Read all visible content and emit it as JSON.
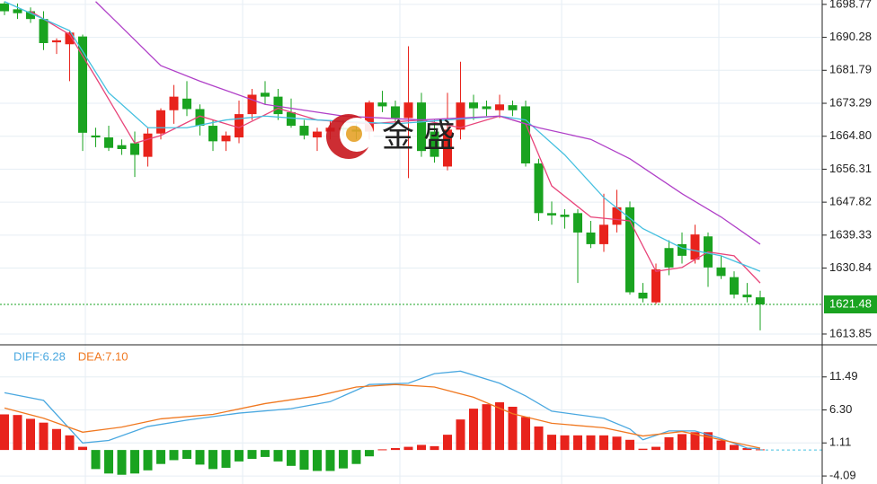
{
  "chart_data": [
    {
      "type": "candlestick",
      "ylim": [
        1611.3,
        1699.9
      ],
      "yticks": [
        1698.77,
        1690.28,
        1681.79,
        1673.29,
        {
          "value": 1664.8,
          "label": "1664.80"
        },
        1656.31,
        1647.82,
        1639.33,
        1630.84,
        1613.85
      ],
      "grid": true,
      "up_color": "#e8231c",
      "down_color": "#1aa320",
      "last_price": 1621.48,
      "last_price_color": "#1aa320",
      "watermark": "金 盛",
      "open": [
        1699,
        1697.5,
        1697,
        1695,
        1689,
        1688.5,
        1690.5,
        1665,
        1664.5,
        1662.5,
        1663,
        1659.5,
        1665.5,
        1671.5,
        1674.5,
        1671.8,
        1667.5,
        1663.5,
        1664.5,
        1670.5,
        1676,
        1675,
        1671,
        1667.5,
        1664.5,
        1666,
        1667,
        1666.5,
        1666,
        1673.5,
        1672.5,
        1669.5,
        1673.5,
        1666,
        1657,
        1666.5,
        1673.5,
        1672.5,
        1671.5,
        1672.8,
        1672.5,
        1657.8,
        1645,
        1644.6,
        1645,
        1640,
        1637,
        1642,
        1646.5,
        1624.5,
        1622,
        1636,
        1637,
        1633,
        1639,
        1631,
        1628.5,
        1624,
        1623.3
      ],
      "high": [
        1699.5,
        1699,
        1698,
        1697,
        1690,
        1692,
        1691,
        1667,
        1667.5,
        1664,
        1666,
        1667,
        1672,
        1678,
        1679,
        1673,
        1669,
        1666,
        1674,
        1677,
        1679,
        1677,
        1674.5,
        1669,
        1667,
        1669,
        1669,
        1668,
        1674,
        1676.5,
        1674,
        1688,
        1676,
        1669,
        1676,
        1684,
        1675.5,
        1674,
        1675.5,
        1674,
        1674,
        1659,
        1648,
        1646,
        1646,
        1643,
        1650,
        1651,
        1648,
        1627,
        1632,
        1638,
        1640,
        1642,
        1640,
        1634,
        1630,
        1627,
        1625
      ],
      "low": [
        1696,
        1695,
        1694,
        1687,
        1686,
        1679,
        1661,
        1662,
        1661,
        1660,
        1654.3,
        1657,
        1664,
        1668,
        1670,
        1665,
        1661,
        1661,
        1663,
        1669,
        1673,
        1669,
        1667,
        1664,
        1661,
        1664,
        1665,
        1664,
        1664,
        1671,
        1668,
        1654,
        1659.5,
        1658,
        1656,
        1664,
        1669,
        1670,
        1669.5,
        1670,
        1657,
        1643,
        1642,
        1641,
        1627,
        1636,
        1635,
        1640,
        1624,
        1622,
        1621.5,
        1629,
        1632,
        1632,
        1626,
        1628,
        1623,
        1622,
        1614.8
      ],
      "close": [
        1697,
        1696.5,
        1695,
        1688.8,
        1689.5,
        1691.5,
        1665.7,
        1664.5,
        1661.8,
        1661.5,
        1660,
        1665.5,
        1671.5,
        1675,
        1671.8,
        1667.5,
        1663.5,
        1665,
        1670.5,
        1675.5,
        1675,
        1670.5,
        1667.5,
        1665,
        1666,
        1667,
        1666.5,
        1666,
        1673.5,
        1672.5,
        1669.5,
        1673.5,
        1661,
        1659.5,
        1666.5,
        1673.5,
        1672,
        1671.8,
        1673,
        1671.5,
        1657.8,
        1645,
        1644.4,
        1644,
        1640,
        1637,
        1642,
        1646.5,
        1624.6,
        1623,
        1630.5,
        1631,
        1634,
        1639.5,
        1631,
        1628.8,
        1624,
        1623.3,
        1621.48
      ],
      "lines": [
        {
          "color": "#e8457a",
          "x": [
            2,
            5,
            7,
            10,
            12,
            15,
            18,
            21,
            24,
            28,
            32,
            35,
            38,
            40,
            42,
            45,
            48,
            50,
            52,
            54,
            56,
            58
          ],
          "values": [
            1697,
            1691,
            1680,
            1663,
            1665,
            1670,
            1667,
            1672,
            1669,
            1668,
            1669,
            1667,
            1670,
            1668,
            1652,
            1644,
            1643,
            1630,
            1631,
            1635,
            1634,
            1627
          ]
        },
        {
          "color": "#45c0e0",
          "x": [
            0,
            5,
            8,
            11,
            14,
            17,
            20,
            24,
            30,
            34,
            38,
            40,
            43,
            46,
            49,
            52,
            55,
            58
          ],
          "values": [
            1699.5,
            1692,
            1676,
            1667,
            1667,
            1669,
            1670,
            1669,
            1668,
            1669,
            1670,
            1669,
            1660,
            1649,
            1641,
            1636,
            1634,
            1630
          ]
        },
        {
          "color": "#b040c8",
          "x": [
            7,
            12,
            15,
            20,
            26,
            32,
            38,
            41,
            45,
            48,
            52,
            55,
            58
          ],
          "values": [
            1699.5,
            1683,
            1679,
            1673,
            1670,
            1669,
            1670,
            1667,
            1664,
            1659,
            1650,
            1644,
            1637
          ]
        }
      ]
    },
    {
      "type": "macd",
      "ylim": [
        -5.35,
        16.4
      ],
      "yticks": [
        11.49,
        {
          "value": 6.3,
          "label": "6.30"
        },
        1.11,
        -4.09
      ],
      "grid": true,
      "up_color": "#e8231c",
      "down_color": "#1aa320",
      "histogram": [
        5.6,
        5.5,
        4.9,
        4.3,
        3.3,
        2.3,
        0.5,
        -3,
        -3.7,
        -3.9,
        -3.7,
        -3.2,
        -2.2,
        -1.6,
        -1.4,
        -2.3,
        -3,
        -2.8,
        -1.8,
        -1.4,
        -1.1,
        -1.8,
        -2.5,
        -3.1,
        -3.3,
        -3.3,
        -2.9,
        -2.2,
        -1,
        0.1,
        0.3,
        0.5,
        0.8,
        0.6,
        2.4,
        4.8,
        6.5,
        7.2,
        7.5,
        6.8,
        5.2,
        3.7,
        2.4,
        2.3,
        2.3,
        2.3,
        2.3,
        2.1,
        1.6,
        0.2,
        0.5,
        2,
        2.5,
        2.8,
        2.8,
        1.5,
        0.8,
        0.3,
        0.1
      ],
      "series": [
        {
          "name": "DIFF:6.28",
          "color": "#4aa8e0",
          "x": [
            0,
            3,
            6,
            8,
            11,
            14,
            18,
            22,
            25,
            28,
            31,
            33,
            35,
            38,
            40,
            42,
            46,
            48,
            49,
            51,
            53,
            55,
            57,
            58
          ],
          "values": [
            9,
            7.8,
            1.1,
            1.5,
            3.7,
            4.7,
            5.8,
            6.5,
            7.6,
            10.3,
            10.5,
            12,
            12.4,
            10.5,
            8.5,
            6.1,
            5,
            3.3,
            1.6,
            3,
            3,
            1.8,
            0.3,
            0.2
          ]
        },
        {
          "name": "DEA:7.10",
          "color": "#f07820",
          "x": [
            0,
            3,
            6,
            9,
            12,
            16,
            20,
            24,
            27,
            30,
            33,
            36,
            39,
            42,
            46,
            49,
            52,
            55,
            58
          ],
          "values": [
            6.6,
            5,
            2.8,
            3.6,
            4.9,
            5.6,
            7.3,
            8.5,
            9.9,
            10.3,
            9.9,
            8.3,
            5.7,
            4.2,
            3.5,
            2.2,
            2.9,
            1.6,
            0.3
          ]
        }
      ]
    }
  ]
}
